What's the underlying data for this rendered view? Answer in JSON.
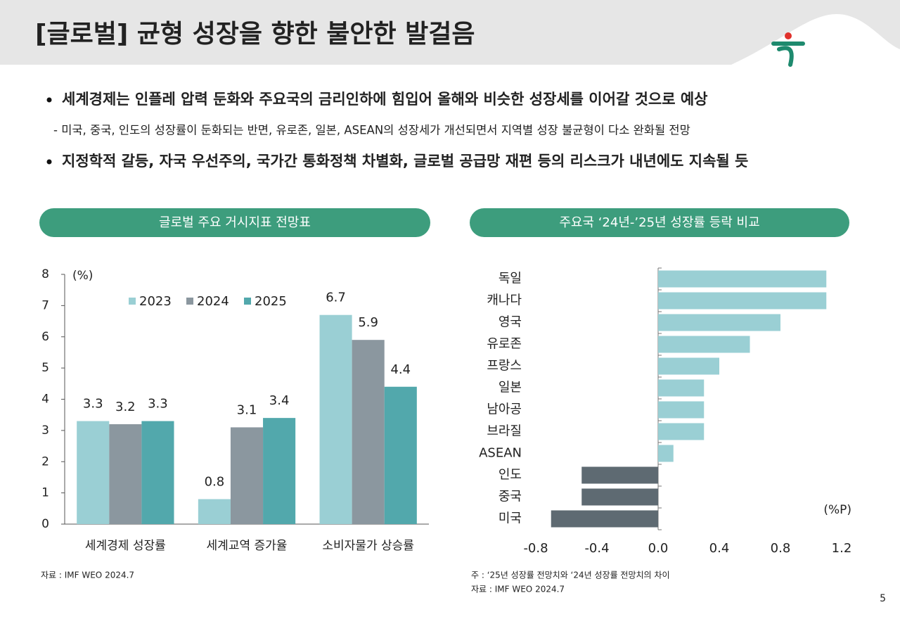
{
  "header": {
    "title": "[글로벌] 균형 성장을 향한 불안한 발걸음"
  },
  "bullets": [
    {
      "text": "세계경제는 인플레 압력 둔화와 주요국의 금리인하에 힘입어 올해와 비슷한 성장세를 이어갈 것으로 예상",
      "detail": "- 미국, 중국, 인도의 성장률이 둔화되는 반면, 유로존, 일본, ASEAN의 성장세가 개선되면서 지역별 성장 불균형이 다소 완화될 전망"
    },
    {
      "text": "지정학적 갈등, 자국 우선주의, 국가간 통화정책 차별화, 글로벌 공급망 재편 등의 리스크가 내년에도 지속될 듯"
    }
  ],
  "chart_data": [
    {
      "type": "bar",
      "title": "글로벌 주요 거시지표 전망표",
      "y_unit": "(%)",
      "categories": [
        "세계경제 성장률",
        "세계교역 증가율",
        "소비자물가 상승률"
      ],
      "series": [
        {
          "name": "2023",
          "color": "#9acfd4",
          "values": [
            3.3,
            0.8,
            6.7
          ]
        },
        {
          "name": "2024",
          "color": "#8b979f",
          "values": [
            3.2,
            3.1,
            5.9
          ]
        },
        {
          "name": "2025",
          "color": "#52a8ac",
          "values": [
            3.3,
            3.4,
            4.4
          ]
        }
      ],
      "ylim": [
        0,
        8
      ],
      "yticks": [
        0,
        1,
        2,
        3,
        4,
        5,
        6,
        7,
        8
      ],
      "source": "자료 : IMF WEO 2024.7"
    },
    {
      "type": "barh",
      "title": "주요국 ‘24년-’25년 성장률 등락 비교",
      "x_unit": "(%P)",
      "categories": [
        "독일",
        "캐나다",
        "영국",
        "유로존",
        "프랑스",
        "일본",
        "남아공",
        "브라질",
        "ASEAN",
        "인도",
        "중국",
        "미국"
      ],
      "values": [
        1.1,
        1.1,
        0.8,
        0.6,
        0.4,
        0.3,
        0.3,
        0.3,
        0.1,
        -0.5,
        -0.5,
        -0.7
      ],
      "color": "#9acfd4",
      "negative_color": "#5e6a72",
      "xlim": [
        -0.8,
        1.2
      ],
      "xticks": [
        -0.8,
        -0.4,
        {
          "value": 0,
          "label": "0.0"
        },
        0.4,
        0.8,
        1.2
      ],
      "notes": [
        "주 : ‘25년 성장률 전망치와 ‘24년 성장률 전망치의 차이",
        "자료 : IMF WEO 2024.7"
      ]
    }
  ],
  "page_number": "5"
}
